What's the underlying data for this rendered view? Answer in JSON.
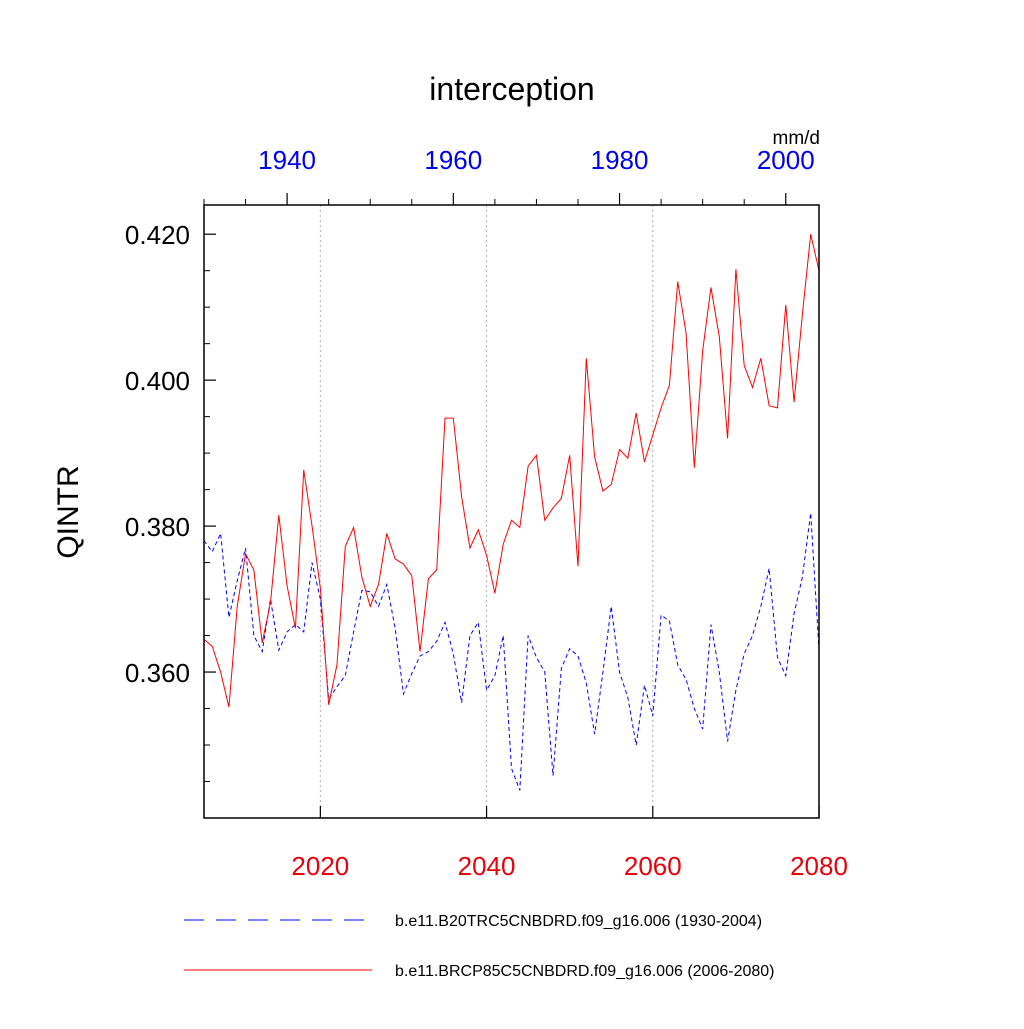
{
  "chart_data": {
    "type": "line",
    "title": "interception",
    "ylabel": "QINTR",
    "units": "mm/d",
    "ylim": [
      0.34,
      0.424
    ],
    "y_ticks": [
      "0.360",
      "0.380",
      "0.400",
      "0.420"
    ],
    "y_tick_values": [
      0.36,
      0.38,
      0.4,
      0.42
    ],
    "bottom_axis": {
      "range": [
        2006,
        2080
      ],
      "ticks": [
        2020,
        2040,
        2060,
        2080
      ],
      "labels": [
        "2020",
        "2040",
        "2060",
        "2080"
      ],
      "color": "#e8000b"
    },
    "top_axis": {
      "range": [
        1930,
        2004
      ],
      "ticks": [
        1940,
        1960,
        1980,
        2000
      ],
      "labels": [
        "1940",
        "1960",
        "1980",
        "2000"
      ],
      "color": "#0000ee"
    },
    "vertical_gridlines_at": [
      2020,
      2040,
      2060
    ],
    "series": [
      {
        "name": "b.e11.B20TRC5CNBDRD.f09_g16.006 (1930-2004)",
        "axis": "top",
        "color": "#0000ff",
        "dash": "dashed",
        "x": [
          1930,
          1931,
          1932,
          1933,
          1934,
          1935,
          1936,
          1937,
          1938,
          1939,
          1940,
          1941,
          1942,
          1943,
          1944,
          1945,
          1946,
          1947,
          1948,
          1949,
          1950,
          1951,
          1952,
          1953,
          1954,
          1955,
          1956,
          1957,
          1958,
          1959,
          1960,
          1961,
          1962,
          1963,
          1964,
          1965,
          1966,
          1967,
          1968,
          1969,
          1970,
          1971,
          1972,
          1973,
          1974,
          1975,
          1976,
          1977,
          1978,
          1979,
          1980,
          1981,
          1982,
          1983,
          1984,
          1985,
          1986,
          1987,
          1988,
          1989,
          1990,
          1991,
          1992,
          1993,
          1994,
          1995,
          1996,
          1997,
          1998,
          1999,
          2000,
          2001,
          2002,
          2003,
          2004
        ],
        "values": [
          0.378,
          0.3765,
          0.379,
          0.3675,
          0.3725,
          0.377,
          0.365,
          0.3628,
          0.37,
          0.363,
          0.3655,
          0.3665,
          0.3655,
          0.375,
          0.37,
          0.3563,
          0.358,
          0.3595,
          0.3655,
          0.3712,
          0.371,
          0.369,
          0.372,
          0.366,
          0.357,
          0.3598,
          0.3622,
          0.3628,
          0.3642,
          0.3668,
          0.3625,
          0.3558,
          0.365,
          0.3668,
          0.3575,
          0.3595,
          0.365,
          0.3468,
          0.3438,
          0.365,
          0.362,
          0.36,
          0.3458,
          0.3605,
          0.3632,
          0.3622,
          0.3585,
          0.3515,
          0.36,
          0.369,
          0.36,
          0.3565,
          0.35,
          0.3582,
          0.354,
          0.3678,
          0.367,
          0.361,
          0.359,
          0.355,
          0.3522,
          0.3665,
          0.36,
          0.3505,
          0.3575,
          0.3625,
          0.365,
          0.369,
          0.3742,
          0.362,
          0.3595,
          0.368,
          0.373,
          0.3818,
          0.363
        ]
      },
      {
        "name": "b.e11.BRCP85C5CNBDRD.f09_g16.006 (2006-2080)",
        "axis": "bottom",
        "color": "#ff0000",
        "dash": "solid",
        "x": [
          2006,
          2007,
          2008,
          2009,
          2010,
          2011,
          2012,
          2013,
          2014,
          2015,
          2016,
          2017,
          2018,
          2019,
          2020,
          2021,
          2022,
          2023,
          2024,
          2025,
          2026,
          2027,
          2028,
          2029,
          2030,
          2031,
          2032,
          2033,
          2034,
          2035,
          2036,
          2037,
          2038,
          2039,
          2040,
          2041,
          2042,
          2043,
          2044,
          2045,
          2046,
          2047,
          2048,
          2049,
          2050,
          2051,
          2052,
          2053,
          2054,
          2055,
          2056,
          2057,
          2058,
          2059,
          2060,
          2061,
          2062,
          2063,
          2064,
          2065,
          2066,
          2067,
          2068,
          2069,
          2070,
          2071,
          2072,
          2073,
          2074,
          2075,
          2076,
          2077,
          2078,
          2079,
          2080
        ],
        "values": [
          0.3645,
          0.3635,
          0.36,
          0.3552,
          0.369,
          0.3762,
          0.374,
          0.364,
          0.3695,
          0.3815,
          0.3718,
          0.366,
          0.3877,
          0.38,
          0.3715,
          0.3555,
          0.361,
          0.3772,
          0.3798,
          0.373,
          0.369,
          0.372,
          0.379,
          0.3755,
          0.3748,
          0.3732,
          0.3628,
          0.3728,
          0.374,
          0.3948,
          0.3948,
          0.384,
          0.377,
          0.3795,
          0.376,
          0.3708,
          0.3775,
          0.3808,
          0.3798,
          0.3882,
          0.3897,
          0.3808,
          0.3825,
          0.3838,
          0.3897,
          0.3745,
          0.403,
          0.3895,
          0.3848,
          0.3857,
          0.3905,
          0.3893,
          0.3955,
          0.3888,
          0.3925,
          0.3962,
          0.3993,
          0.4135,
          0.4065,
          0.388,
          0.404,
          0.4127,
          0.406,
          0.392,
          0.4152,
          0.402,
          0.399,
          0.403,
          0.3965,
          0.3962,
          0.4103,
          0.397,
          0.409,
          0.42,
          0.415
        ]
      }
    ],
    "legend": {
      "placement": "bottom"
    }
  }
}
